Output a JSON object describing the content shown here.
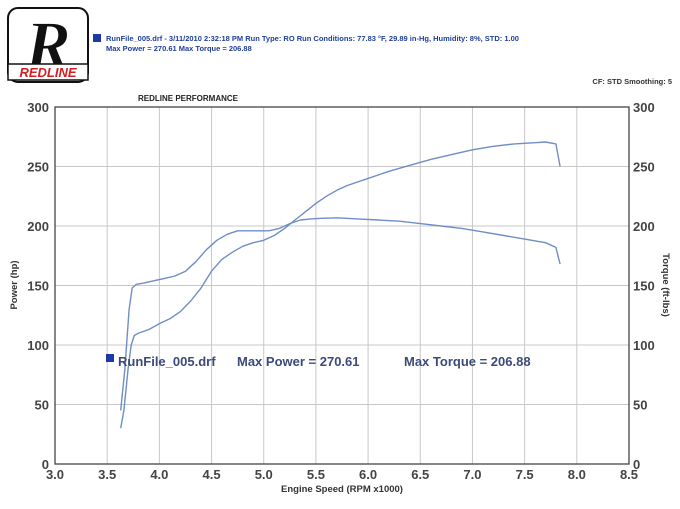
{
  "logo": {
    "letter": "R",
    "wordmark": "REDLINE"
  },
  "header": {
    "line1": "RunFile_005.drf - 3/11/2010 2:32:18 PM  Run Type: RO  Run Conditions: 77.83 °F, 29.89 in-Hg,  Humidity:  8%, STD: 1.00",
    "line2": "Max Power = 270.61  Max Torque = 206.88",
    "cf": "CF: STD  Smoothing: 5"
  },
  "colors": {
    "curve": "#6f8ec6",
    "legend_square": "#1a3aa8",
    "grid": "#c8c8c8"
  },
  "chart_data": {
    "type": "line",
    "title": "REDLINE PERFORMANCE",
    "xlabel": "Engine Speed (RPM x1000)",
    "ylabel_left": "Power (hp)",
    "ylabel_right": "Torque (ft-lbs)",
    "xlim": [
      3.0,
      8.5
    ],
    "ylim": [
      0,
      300
    ],
    "x_ticks": [
      "3.0",
      "3.5",
      "4.0",
      "4.5",
      "5.0",
      "5.5",
      "6.0",
      "6.5",
      "7.0",
      "7.5",
      "8.0",
      "8.5"
    ],
    "y_ticks_left": [
      "0",
      "50",
      "100",
      "150",
      "200",
      "250",
      "300"
    ],
    "y_ticks_right": [
      "0",
      "50",
      "100",
      "150",
      "200",
      "250",
      "300"
    ],
    "grid": true,
    "annotation": {
      "file": "RunFile_005.drf",
      "max_power": "Max Power = 270.61",
      "max_torque": "Max Torque = 206.88"
    },
    "series": [
      {
        "x": [
          3.63,
          3.66,
          3.7,
          3.73,
          3.76,
          3.8,
          3.9,
          4.0,
          4.1,
          4.2,
          4.3,
          4.4,
          4.5,
          4.6,
          4.7,
          4.8,
          4.9,
          5.0,
          5.1,
          5.2,
          5.3,
          5.4,
          5.5,
          5.6,
          5.7,
          5.8,
          6.0,
          6.2,
          6.4,
          6.6,
          6.8,
          7.0,
          7.2,
          7.4,
          7.6,
          7.7,
          7.8,
          7.84
        ],
        "values": [
          30,
          45,
          80,
          100,
          108,
          110,
          113,
          118,
          122,
          128,
          137,
          148,
          162,
          172,
          178,
          183,
          186,
          188,
          192,
          198,
          205,
          212,
          219,
          225,
          230,
          234,
          240,
          246,
          251,
          256,
          260,
          264,
          267,
          269,
          270,
          270.6,
          269,
          250
        ]
      },
      {
        "x": [
          3.63,
          3.67,
          3.71,
          3.74,
          3.78,
          3.85,
          3.95,
          4.05,
          4.15,
          4.25,
          4.35,
          4.45,
          4.55,
          4.65,
          4.75,
          4.85,
          4.95,
          5.05,
          5.15,
          5.25,
          5.35,
          5.45,
          5.55,
          5.7,
          5.9,
          6.1,
          6.3,
          6.5,
          6.7,
          6.9,
          7.1,
          7.3,
          7.5,
          7.7,
          7.8,
          7.84
        ],
        "values": [
          45,
          80,
          130,
          148,
          151,
          152,
          154,
          156,
          158,
          162,
          170,
          180,
          188,
          193,
          196,
          196,
          196,
          196,
          198,
          202,
          205,
          206,
          206.5,
          206.88,
          206,
          205,
          204,
          202,
          200,
          198,
          195,
          192,
          189,
          186,
          182,
          168
        ]
      }
    ]
  }
}
